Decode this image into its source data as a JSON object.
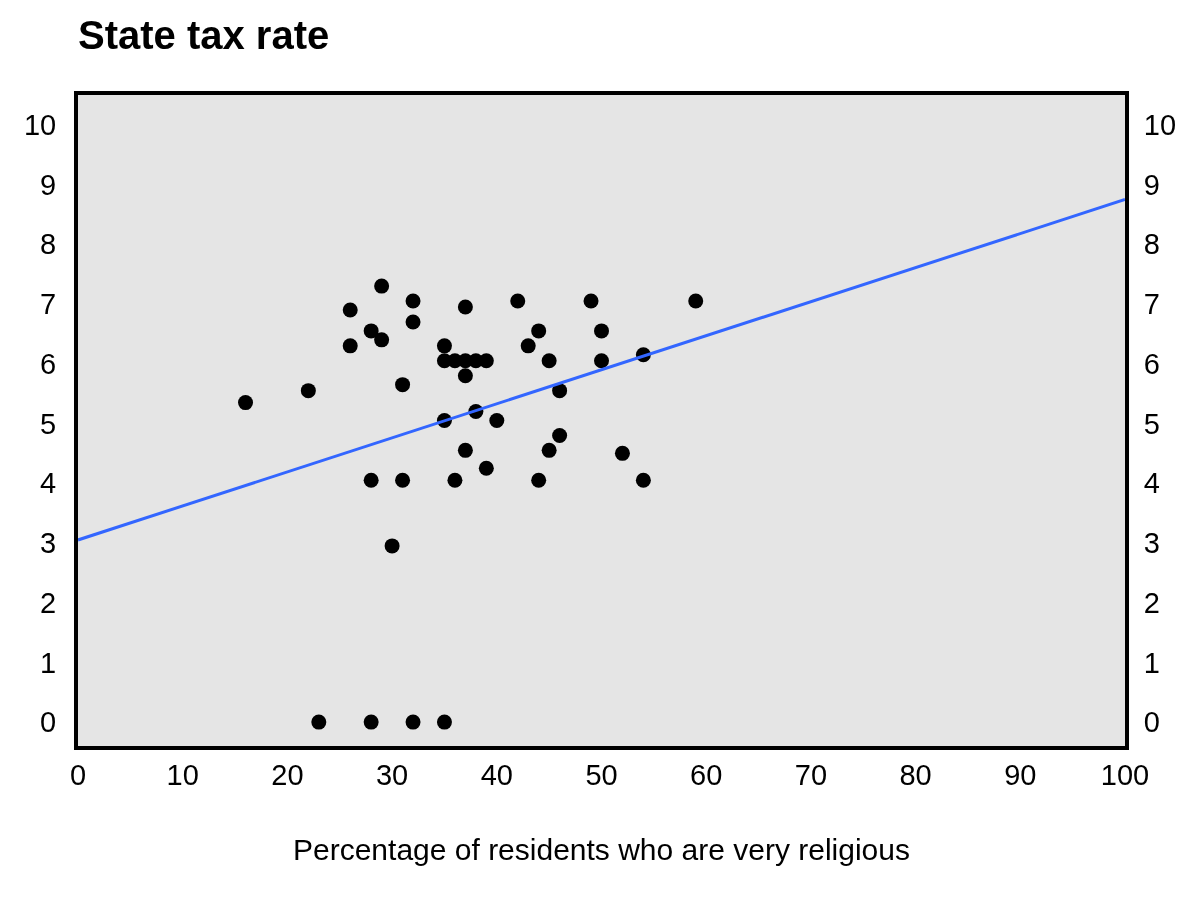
{
  "chart_data": {
    "type": "scatter",
    "title": "State tax rate",
    "xlabel": "Percentage of residents who are very religious",
    "xlim": [
      0,
      100
    ],
    "xticks": [
      0,
      10,
      20,
      30,
      40,
      50,
      60,
      70,
      80,
      90,
      100
    ],
    "ylim": [
      -0.4,
      10.5
    ],
    "yticks": [
      0,
      1,
      2,
      3,
      4,
      5,
      6,
      7,
      8,
      9,
      10
    ],
    "y2lim": [
      -0.4,
      10.5
    ],
    "y2ticks": [
      0,
      1,
      2,
      3,
      4,
      5,
      6,
      7,
      8,
      9,
      10
    ],
    "grid": false,
    "marker": "circle",
    "series": [
      {
        "color": "#000000",
        "x": [
          16,
          22,
          26,
          26,
          28,
          28,
          29,
          29,
          30,
          31,
          31,
          32,
          32,
          35,
          35,
          35,
          36,
          36,
          37,
          37,
          37,
          37,
          38,
          38,
          39,
          39,
          40,
          42,
          43,
          44,
          44,
          45,
          45,
          46,
          46,
          49,
          50,
          50,
          52,
          54,
          54,
          59,
          23,
          28,
          32,
          35
        ],
        "values": [
          5.35,
          5.55,
          6.9,
          6.3,
          6.55,
          4.05,
          7.3,
          6.4,
          2.95,
          4.05,
          5.65,
          7.05,
          6.7,
          6.3,
          6.05,
          5.05,
          6.05,
          4.05,
          6.95,
          6.05,
          5.8,
          4.55,
          6.05,
          5.2,
          6.05,
          4.25,
          5.05,
          7.05,
          6.3,
          6.55,
          4.05,
          6.05,
          4.55,
          4.8,
          5.55,
          7.05,
          6.55,
          6.05,
          4.5,
          4.05,
          6.15,
          7.05,
          0,
          0,
          0,
          0
        ]
      },
      {
        "type": "line",
        "color": "#3366ff",
        "x": [
          0,
          100
        ],
        "values": [
          3.05,
          8.75
        ],
        "marker": "none",
        "line_style": "solid"
      }
    ]
  }
}
